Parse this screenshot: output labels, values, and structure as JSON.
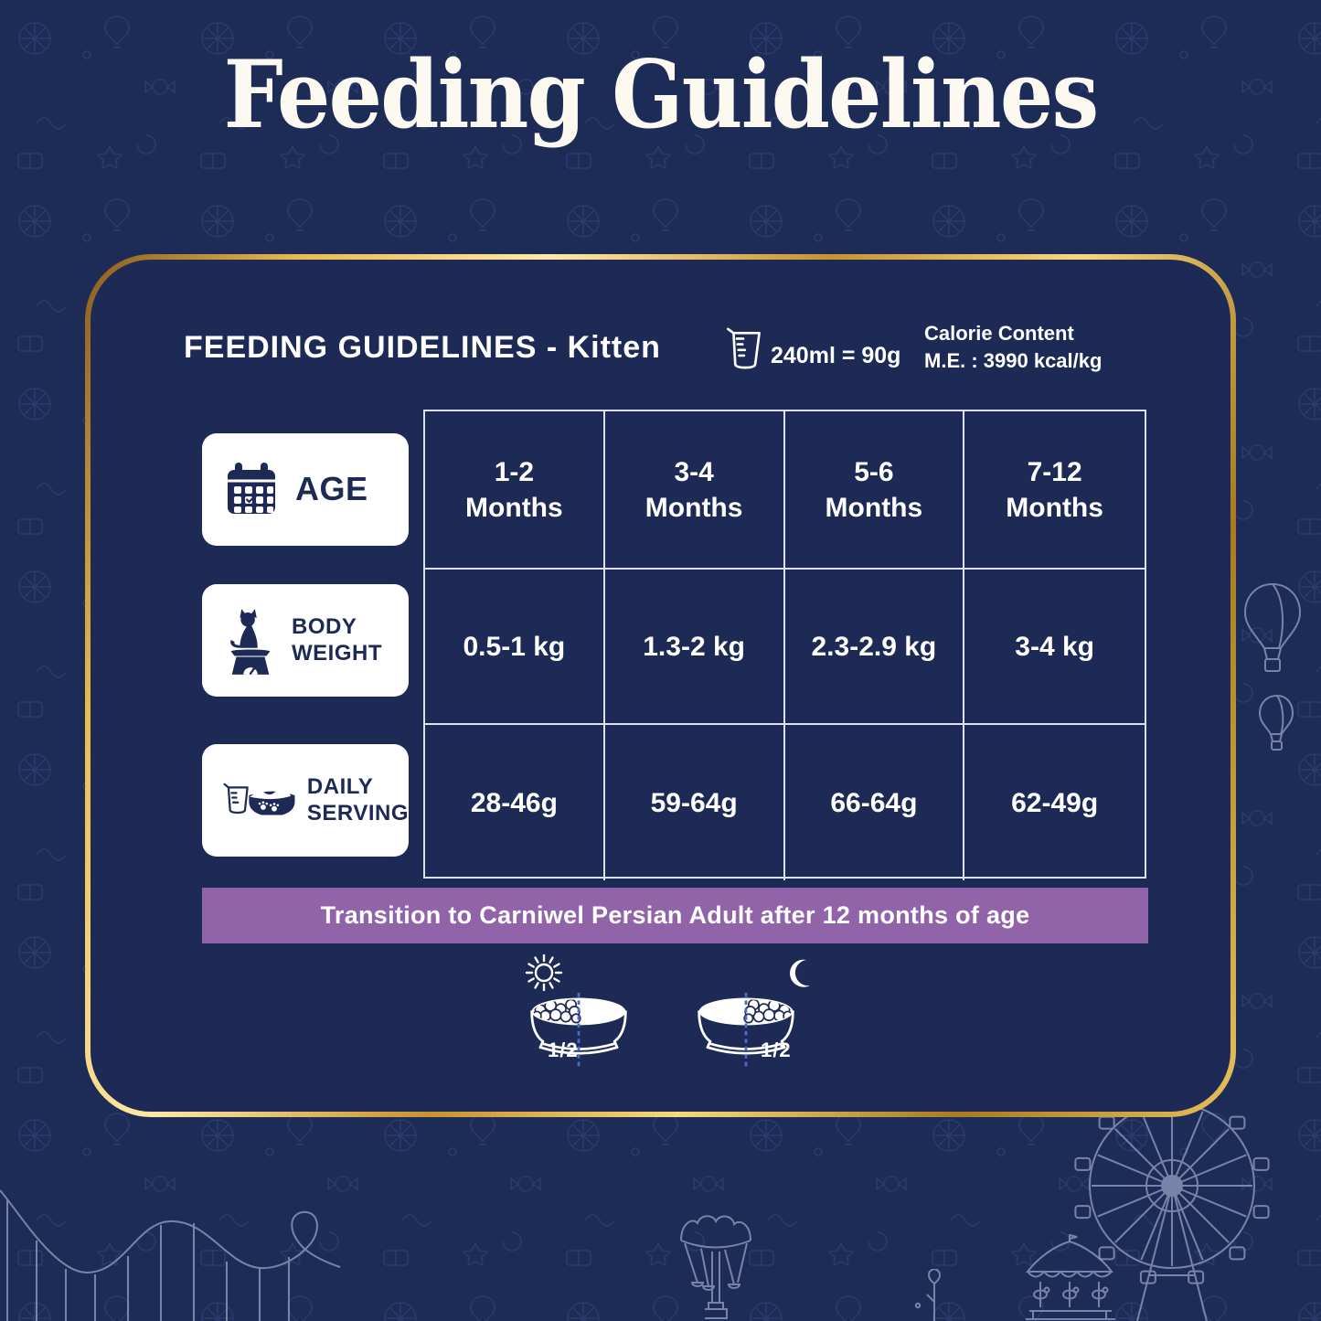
{
  "title": "Feeding Guidelines",
  "card": {
    "heading": "FEEDING GUIDELINES - Kitten",
    "measure_label": "240ml = 90g",
    "calorie_line1": "Calorie Content",
    "calorie_line2": "M.E. : 3990 kcal/kg",
    "table": {
      "rows": [
        {
          "id": "age",
          "label": "AGE",
          "cells": [
            [
              "1-2",
              "Months"
            ],
            [
              "3-4",
              "Months"
            ],
            [
              "5-6",
              "Months"
            ],
            [
              "7-12",
              "Months"
            ]
          ]
        },
        {
          "id": "body-weight",
          "label": [
            "BODY",
            "WEIGHT"
          ],
          "cells": [
            "0.5-1 kg",
            "1.3-2 kg",
            "2.3-2.9 kg",
            "3-4 kg"
          ]
        },
        {
          "id": "daily-serving",
          "label": [
            "DAILY",
            "SERVING"
          ],
          "cells": [
            "28-46g",
            "59-64g",
            "66-64g",
            "62-49g"
          ]
        }
      ]
    },
    "banner": "Transition to Carniwel Persian Adult after 12 months of age",
    "bowls": [
      {
        "time": "day",
        "icon": "sun-icon",
        "fraction": "1/2"
      },
      {
        "time": "night",
        "icon": "moon-icon",
        "fraction": "1/2"
      }
    ]
  },
  "icons": {
    "header_measure": "measuring-cup-icon",
    "age_row": "calendar-icon",
    "body_weight_row": "cat-on-scale-icon",
    "daily_serving_row": "food-bowl-icon",
    "day": "sun-icon",
    "night": "moon-icon",
    "decorations": [
      "ferris-wheel-icon",
      "carousel-icon",
      "roller-coaster-icon",
      "hot-air-balloon-icon",
      "swing-ride-icon",
      "plant-icon"
    ]
  },
  "colors": {
    "background_navy": "#1d2b57",
    "card_navy": "#1c2a55",
    "gold_border": "#e8c05a",
    "table_border": "#dde1ec",
    "banner_purple": "#9164aa",
    "text_white": "#ffffff",
    "divider_blue": "#4a6cc9"
  }
}
